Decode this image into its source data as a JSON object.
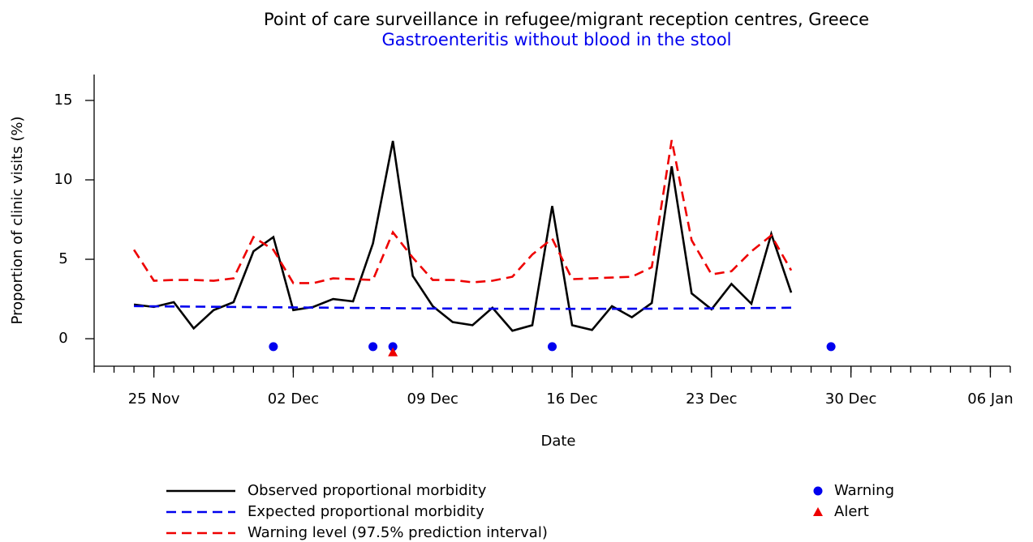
{
  "chart_data": {
    "type": "line",
    "title": "Point of care surveillance in refugee/migrant reception centres, Greece",
    "subtitle": "Gastroenteritis without blood in the stool",
    "x_label": "Date",
    "y_label": "Proportion of clinic visits (%)",
    "x": [
      "24 Nov",
      "25 Nov",
      "26 Nov",
      "27 Nov",
      "28 Nov",
      "29 Nov",
      "30 Nov",
      "01 Dec",
      "02 Dec",
      "03 Dec",
      "04 Dec",
      "05 Dec",
      "06 Dec",
      "07 Dec",
      "08 Dec",
      "09 Dec",
      "10 Dec",
      "11 Dec",
      "12 Dec",
      "13 Dec",
      "14 Dec",
      "15 Dec",
      "16 Dec",
      "17 Dec",
      "18 Dec",
      "19 Dec",
      "20 Dec",
      "21 Dec",
      "22 Dec",
      "23 Dec",
      "24 Dec",
      "25 Dec",
      "26 Dec",
      "27 Dec"
    ],
    "series": [
      {
        "name": "Observed proportional morbidity",
        "color": "#000000",
        "style": "solid",
        "values": [
          2.15,
          2.0,
          2.3,
          0.65,
          1.8,
          2.3,
          5.5,
          6.4,
          1.8,
          2.0,
          2.5,
          2.35,
          6.0,
          12.45,
          3.95,
          2.05,
          1.05,
          0.85,
          1.95,
          0.5,
          0.85,
          8.35,
          0.85,
          0.55,
          2.05,
          1.35,
          2.25,
          10.85,
          2.85,
          1.85,
          3.45,
          2.2,
          6.6,
          2.9
        ]
      },
      {
        "name": "Expected proportional morbidity",
        "color": "#0000ee",
        "style": "dashed",
        "values": [
          2.05,
          2.04,
          2.03,
          2.02,
          2.01,
          2.0,
          1.99,
          1.98,
          1.97,
          1.96,
          1.95,
          1.94,
          1.93,
          1.92,
          1.91,
          1.9,
          1.9,
          1.89,
          1.89,
          1.88,
          1.88,
          1.88,
          1.88,
          1.88,
          1.88,
          1.89,
          1.89,
          1.9,
          1.9,
          1.91,
          1.92,
          1.93,
          1.94,
          1.95
        ]
      },
      {
        "name": "Warning level (97.5% prediction interval)",
        "color": "#ee0000",
        "style": "dashed",
        "values": [
          5.6,
          3.65,
          3.7,
          3.7,
          3.65,
          3.8,
          6.4,
          5.6,
          3.5,
          3.5,
          3.8,
          3.75,
          3.7,
          6.7,
          5.1,
          3.7,
          3.7,
          3.55,
          3.65,
          3.9,
          5.3,
          6.3,
          3.75,
          3.8,
          3.85,
          3.9,
          4.5,
          12.5,
          6.2,
          4.05,
          4.25,
          5.5,
          6.5,
          4.3
        ]
      },
      {
        "name": "Warning",
        "color": "#0000ee",
        "marker": "circle",
        "x": [
          "01 Dec",
          "06 Dec",
          "07 Dec",
          "15 Dec",
          "29 Dec"
        ],
        "values": [
          -0.5,
          -0.5,
          -0.5,
          -0.5,
          -0.5
        ]
      },
      {
        "name": "Alert",
        "color": "#ee0000",
        "marker": "triangle",
        "x": [
          "07 Dec"
        ],
        "values": [
          -0.85
        ]
      }
    ],
    "xlim": [
      "22 Nov",
      "07 Jan"
    ],
    "xticks": [
      "25 Nov",
      "02 Dec",
      "09 Dec",
      "16 Dec",
      "23 Dec",
      "30 Dec",
      "06 Jan"
    ],
    "ylim": [
      -1.73,
      16.63
    ],
    "yticks": [
      0,
      5,
      10,
      15
    ]
  }
}
